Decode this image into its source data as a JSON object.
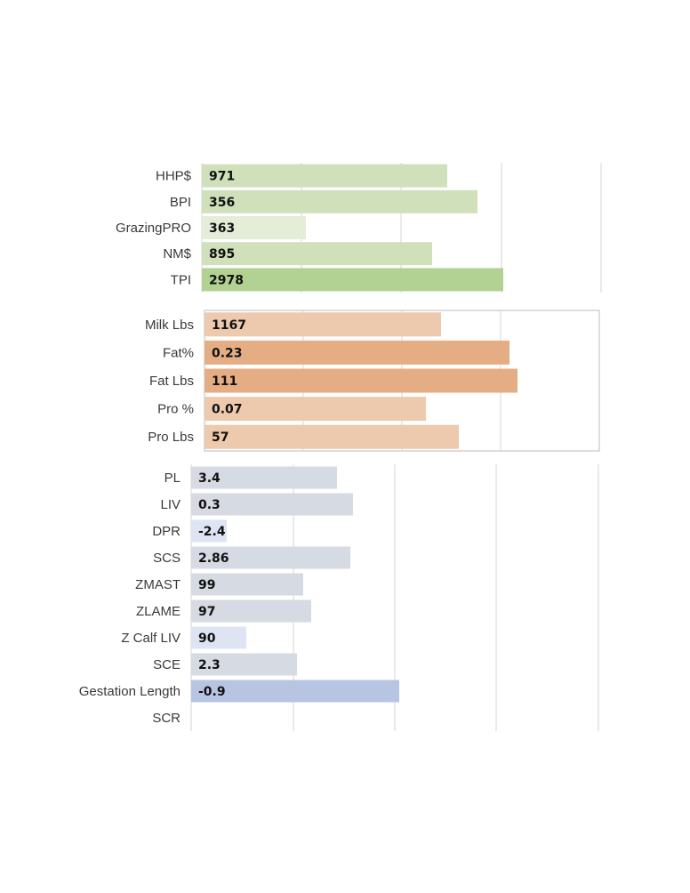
{
  "chart_data": [
    {
      "type": "bar",
      "orientation": "horizontal",
      "categories": [
        "HHP$",
        "BPI",
        "GrazingPRO",
        "NM$",
        "TPI"
      ],
      "values": [
        971,
        356,
        363,
        895,
        2978
      ],
      "data_labels": [
        "971",
        "356",
        "363",
        "895",
        "2978"
      ],
      "colors": [
        "#cfe0bb",
        "#cfe0bb",
        "#e3edd8",
        "#cfe0bb",
        "#b2d294"
      ],
      "grid": true
    },
    {
      "type": "bar",
      "orientation": "horizontal",
      "categories": [
        "Milk Lbs",
        "Fat%",
        "Fat Lbs",
        "Pro %",
        "Pro Lbs"
      ],
      "values": [
        1167,
        0.23,
        111,
        0.07,
        57
      ],
      "data_labels": [
        "1167",
        "0.23",
        "111",
        "0.07",
        "57"
      ],
      "colors": [
        "#edc9ad",
        "#e5ad84",
        "#e5ad84",
        "#edc9ad",
        "#edc9ad"
      ],
      "grid": true,
      "border": true
    },
    {
      "type": "bar",
      "orientation": "horizontal",
      "categories": [
        "PL",
        "LIV",
        "DPR",
        "SCS",
        "ZMAST",
        "ZLAME",
        "Z Calf LIV",
        "SCE",
        "Gestation Length",
        "SCR"
      ],
      "values": [
        3.4,
        0.3,
        -2.4,
        2.86,
        99,
        97,
        90,
        2.3,
        -0.9,
        null
      ],
      "data_labels": [
        "3.4",
        "0.3",
        "-2.4",
        "2.86",
        "99",
        "97",
        "90",
        "2.3",
        "-0.9",
        ""
      ],
      "colors": [
        "#d6dae2",
        "#d6dae2",
        "#dfe4f2",
        "#d6dae2",
        "#d6dae2",
        "#d6dae2",
        "#dfe4f2",
        "#d6dae2",
        "#b7c4e2",
        "#d6dae2"
      ],
      "grid": true
    }
  ]
}
